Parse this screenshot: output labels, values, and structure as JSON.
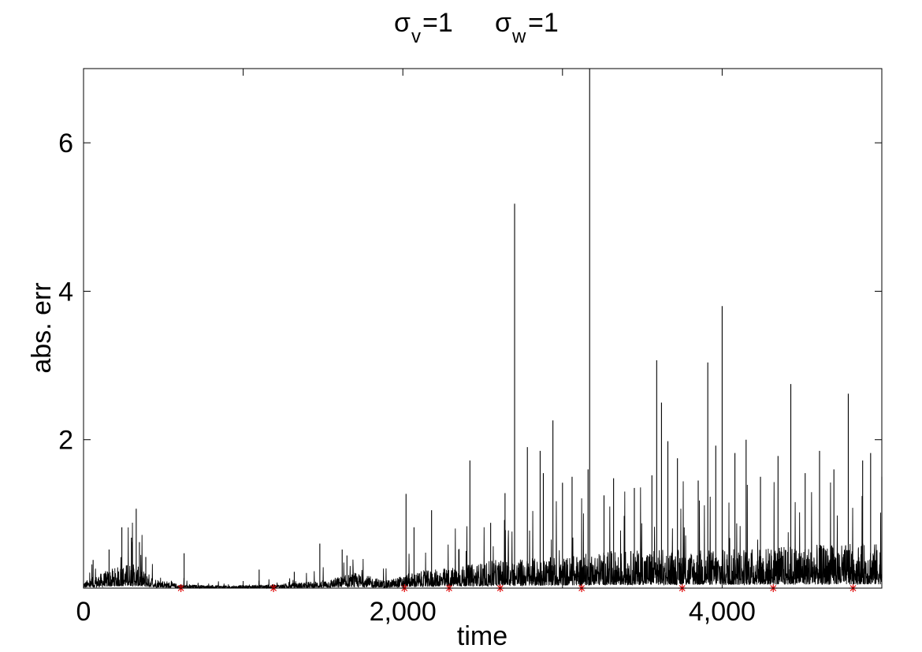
{
  "chart_data": {
    "type": "line",
    "title": {
      "sigma1_symbol": "σ",
      "sigma1_sub": "v",
      "sigma1_value": "=1",
      "sigma2_symbol": "σ",
      "sigma2_sub": "w",
      "sigma2_value": "=1"
    },
    "xlabel": "time",
    "ylabel": "abs. err",
    "xlim": [
      0,
      5000
    ],
    "ylim": [
      0,
      7
    ],
    "x_ticks": [
      0,
      2000,
      4000
    ],
    "x_tick_labels": [
      "0",
      "2,000",
      "4,000"
    ],
    "x_minor_ticks": [
      1000,
      3000,
      5000
    ],
    "y_ticks": [
      2,
      4,
      6
    ],
    "y_tick_labels": [
      "2",
      "4",
      "6"
    ],
    "grid": false,
    "series": [
      {
        "color": "#000000",
        "baseline_levels": [
          [
            0,
            0.05
          ],
          [
            150,
            0.14
          ],
          [
            300,
            0.2
          ],
          [
            450,
            0.08
          ],
          [
            600,
            0.03
          ],
          [
            900,
            0.02
          ],
          [
            1200,
            0.03
          ],
          [
            1500,
            0.06
          ],
          [
            1700,
            0.12
          ],
          [
            1900,
            0.06
          ],
          [
            2050,
            0.12
          ],
          [
            2300,
            0.16
          ],
          [
            2600,
            0.22
          ],
          [
            3000,
            0.24
          ],
          [
            3200,
            0.28
          ],
          [
            3600,
            0.3
          ],
          [
            4000,
            0.3
          ],
          [
            4400,
            0.33
          ],
          [
            4800,
            0.34
          ],
          [
            5000,
            0.35
          ]
        ],
        "spikes": [
          [
            60,
            0.38
          ],
          [
            160,
            0.52
          ],
          [
            240,
            0.82
          ],
          [
            300,
            0.68
          ],
          [
            330,
            1.07
          ],
          [
            350,
            0.62
          ],
          [
            390,
            0.42
          ],
          [
            630,
            0.47
          ],
          [
            1100,
            0.25
          ],
          [
            1320,
            0.22
          ],
          [
            1480,
            0.6
          ],
          [
            1620,
            0.52
          ],
          [
            1650,
            0.44
          ],
          [
            2020,
            1.27
          ],
          [
            2070,
            0.82
          ],
          [
            2180,
            1.05
          ],
          [
            2350,
            0.52
          ],
          [
            2420,
            1.72
          ],
          [
            2550,
            0.88
          ],
          [
            2640,
            1.28
          ],
          [
            2700,
            5.18
          ],
          [
            2780,
            1.9
          ],
          [
            2860,
            1.85
          ],
          [
            2880,
            1.55
          ],
          [
            2940,
            2.26
          ],
          [
            3000,
            1.42
          ],
          [
            3060,
            1.5
          ],
          [
            3160,
            1.6
          ],
          [
            3170,
            7.0
          ],
          [
            3260,
            1.25
          ],
          [
            3320,
            1.48
          ],
          [
            3450,
            1.35
          ],
          [
            3560,
            1.52
          ],
          [
            3590,
            3.07
          ],
          [
            3620,
            2.5
          ],
          [
            3660,
            1.98
          ],
          [
            3720,
            1.75
          ],
          [
            3850,
            1.45
          ],
          [
            3910,
            3.04
          ],
          [
            3960,
            1.92
          ],
          [
            4000,
            3.8
          ],
          [
            4080,
            1.82
          ],
          [
            4150,
            2.0
          ],
          [
            4240,
            1.5
          ],
          [
            4350,
            1.78
          ],
          [
            4430,
            2.75
          ],
          [
            4520,
            1.55
          ],
          [
            4610,
            1.85
          ],
          [
            4700,
            1.6
          ],
          [
            4790,
            2.62
          ],
          [
            4880,
            1.72
          ],
          [
            4930,
            1.82
          ],
          [
            5000,
            1.5
          ]
        ]
      }
    ],
    "markers": {
      "symbol": "*",
      "color": "#e00000",
      "x": [
        610,
        1190,
        2010,
        2290,
        2610,
        3120,
        3750,
        4320,
        4820
      ],
      "y": [
        0,
        0,
        0,
        0,
        0,
        0,
        0,
        0,
        0
      ]
    }
  }
}
